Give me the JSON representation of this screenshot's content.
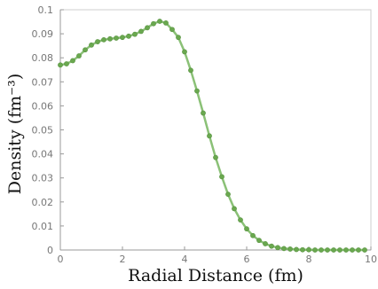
{
  "chart_data": {
    "type": "line",
    "title": "",
    "xlabel": "Radial Distance (fm)",
    "ylabel": "Density (fm⁻³)",
    "xlim": [
      0,
      10
    ],
    "ylim": [
      0,
      0.1
    ],
    "x_ticks": [
      "0",
      "2",
      "4",
      "6",
      "8",
      "10"
    ],
    "y_ticks": [
      "0",
      "0.01",
      "0.02",
      "0.03",
      "0.04",
      "0.05",
      "0.06",
      "0.07",
      "0.08",
      "0.09",
      "0.1"
    ],
    "grid": false,
    "legend": "none",
    "line_color": "#8bc177",
    "marker_color": "#6aa84f",
    "series": [
      {
        "name": "",
        "x": [
          0.0,
          0.2,
          0.4,
          0.6,
          0.8,
          1.0,
          1.2,
          1.4,
          1.6,
          1.8,
          2.0,
          2.2,
          2.4,
          2.6,
          2.8,
          3.0,
          3.2,
          3.4,
          3.6,
          3.8,
          4.0,
          4.2,
          4.4,
          4.6,
          4.8,
          5.0,
          5.2,
          5.4,
          5.6,
          5.8,
          6.0,
          6.2,
          6.4,
          6.6,
          6.8,
          7.0,
          7.2,
          7.4,
          7.6,
          7.8,
          8.0,
          8.2,
          8.4,
          8.6,
          8.8,
          9.0,
          9.2,
          9.4,
          9.6,
          9.8
        ],
        "y": [
          0.077,
          0.0775,
          0.0788,
          0.0808,
          0.0833,
          0.0853,
          0.0867,
          0.0875,
          0.0879,
          0.0882,
          0.0885,
          0.089,
          0.0898,
          0.091,
          0.0925,
          0.0942,
          0.0952,
          0.0945,
          0.0918,
          0.0885,
          0.0825,
          0.0748,
          0.0662,
          0.057,
          0.0475,
          0.0385,
          0.0305,
          0.0232,
          0.0172,
          0.0125,
          0.0088,
          0.006,
          0.004,
          0.0026,
          0.0016,
          0.001,
          0.0006,
          0.0004,
          0.0002,
          0.0001,
          0.0001,
          0.0,
          0.0,
          0.0,
          0.0,
          0.0,
          0.0,
          0.0,
          0.0,
          0.0
        ]
      }
    ]
  }
}
